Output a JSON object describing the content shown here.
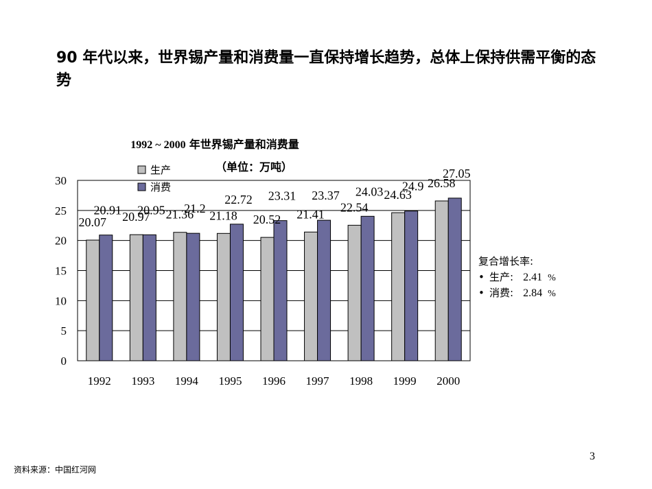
{
  "slide": {
    "headline": "90 年代以来，世界锡产量和消费量一直保持增长趋势，总体上保持供需平衡的态势",
    "source": "资料来源：中国红河网",
    "page_number": "3"
  },
  "growth": {
    "title": "复合增长率:",
    "items": [
      {
        "label": "生产:",
        "value": "2.41",
        "unit": "%"
      },
      {
        "label": "消费:",
        "value": "2.84",
        "unit": "%"
      }
    ]
  },
  "chart_data": {
    "type": "bar",
    "title": "1992 ~ 2000年世界锡产量和消费量",
    "title_year_part": "1992 ~ 2000",
    "title_text_part": "年世界锡产量和消费量",
    "subtitle": "（单位：万吨）",
    "categories": [
      "1992",
      "1993",
      "1994",
      "1995",
      "1996",
      "1997",
      "1998",
      "1999",
      "2000"
    ],
    "series": [
      {
        "name": "生产",
        "color": "#c0c0c0",
        "values": [
          20.07,
          20.97,
          21.36,
          21.18,
          20.52,
          21.41,
          22.54,
          24.63,
          26.58
        ]
      },
      {
        "name": "消费",
        "color": "#6b6b9c",
        "values": [
          20.91,
          20.95,
          21.2,
          22.72,
          23.31,
          23.37,
          24.03,
          24.9,
          27.05
        ]
      }
    ],
    "ylim": [
      0,
      30
    ],
    "yticks": [
      "0",
      "5",
      "10",
      "15",
      "20",
      "25",
      "30"
    ],
    "grid": true,
    "legend_position": "top-left"
  }
}
